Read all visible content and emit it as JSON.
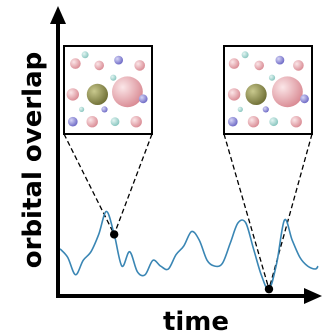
{
  "chart_data": {
    "type": "line",
    "xlabel": "time",
    "ylabel": "orbital overlap",
    "grid": false,
    "legend": "none",
    "tick_labels": "none",
    "xlim": [
      0,
      100
    ],
    "ylim": [
      0,
      100
    ],
    "series": [
      {
        "color": "#3a86b4",
        "x": [
          0,
          3,
          6,
          9,
          12,
          15,
          18,
          21,
          24,
          27,
          30,
          33,
          36,
          39,
          42,
          45,
          48,
          51,
          54,
          57,
          60,
          63,
          66,
          69,
          72,
          75,
          78,
          81,
          84,
          87,
          90,
          93,
          96,
          99,
          100
        ],
        "y": [
          30,
          24,
          12,
          22,
          28,
          40,
          56,
          40,
          18,
          28,
          14,
          12,
          22,
          18,
          16,
          26,
          32,
          42,
          36,
          22,
          18,
          20,
          34,
          48,
          48,
          30,
          12,
          2,
          20,
          50,
          36,
          24,
          18,
          16,
          18
        ]
      }
    ],
    "highlighted_points": [
      {
        "x": 21,
        "y": 40
      },
      {
        "x": 81,
        "y": 2
      }
    ],
    "insets": [
      {
        "content": "atomic-structure",
        "linked_point": 0
      },
      {
        "content": "atomic-structure",
        "linked_point": 1
      }
    ]
  },
  "colors": {
    "line": "#3a86b4",
    "axis": "#000000",
    "marker": "#000000",
    "atom_large": "#e9a7ae",
    "atom_center": "#8f8f4f",
    "atom_small": "#8c88d6",
    "atom_light": "#a7d8d3"
  }
}
